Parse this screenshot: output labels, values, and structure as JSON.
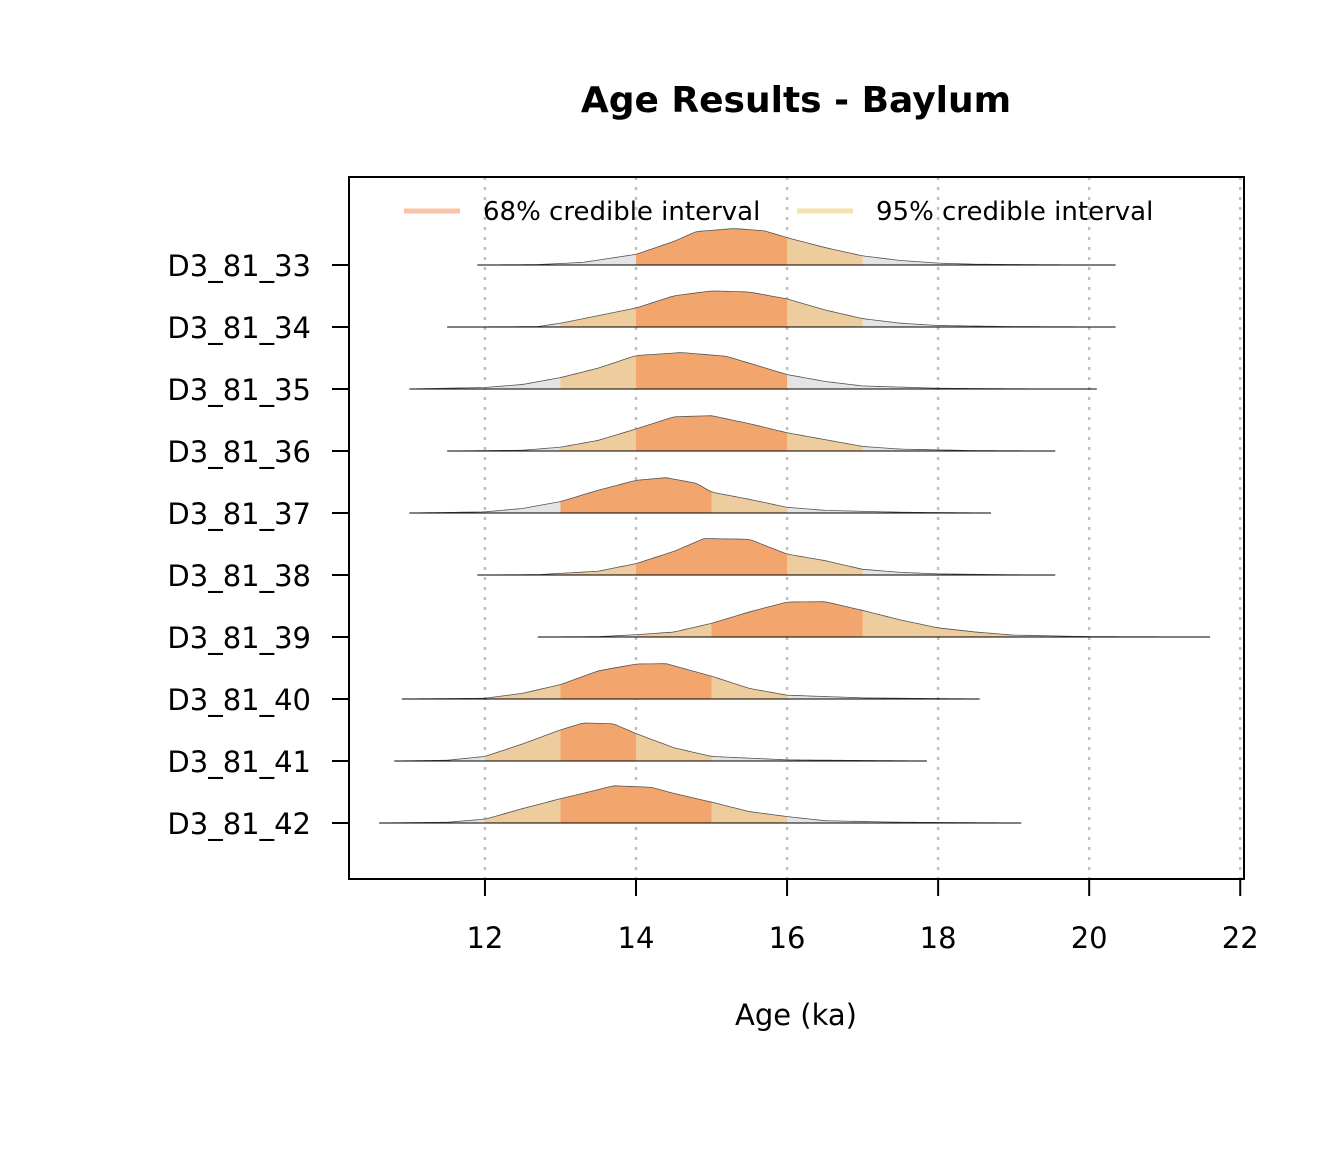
{
  "chart_data": {
    "type": "area",
    "title": "Age Results - Baylum",
    "xlabel": "Age (ka)",
    "ylabel": "",
    "xlim": [
      10.2,
      22.05
    ],
    "x_ticks": [
      12,
      14,
      16,
      18,
      20,
      22
    ],
    "x_tick_labels": [
      "12",
      "14",
      "16",
      "18",
      "20",
      "22"
    ],
    "grid": "vertical dotted at x ticks",
    "legend": {
      "placement": "top",
      "entries": [
        {
          "label": "68% credible interval",
          "color": "#f8c4aa"
        },
        {
          "label": "95% credible interval",
          "color": "#f7e1b0"
        }
      ]
    },
    "colors": {
      "ci68": "#f2a66e",
      "ci95": "#edcc9e",
      "tail": "#e4e4e4",
      "grid": "#bfbfbf"
    },
    "categories": [
      "D3_81_33",
      "D3_81_34",
      "D3_81_35",
      "D3_81_36",
      "D3_81_37",
      "D3_81_38",
      "D3_81_39",
      "D3_81_40",
      "D3_81_41",
      "D3_81_42"
    ],
    "samples": [
      {
        "name": "D3_81_33",
        "range": [
          11.9,
          20.35
        ],
        "ci95": [
          14.0,
          17.0
        ],
        "ci68": [
          14.0,
          16.0
        ],
        "density": [
          [
            11.9,
            0
          ],
          [
            12.7,
            0.01
          ],
          [
            13.3,
            0.07
          ],
          [
            14.0,
            0.28
          ],
          [
            14.5,
            0.62
          ],
          [
            14.8,
            0.88
          ],
          [
            15.3,
            0.96
          ],
          [
            15.7,
            0.9
          ],
          [
            16.0,
            0.72
          ],
          [
            16.5,
            0.46
          ],
          [
            17.0,
            0.24
          ],
          [
            17.5,
            0.12
          ],
          [
            18.0,
            0.05
          ],
          [
            18.5,
            0.02
          ],
          [
            19.5,
            0.005
          ],
          [
            20.35,
            0
          ]
        ]
      },
      {
        "name": "D3_81_34",
        "range": [
          11.5,
          20.35
        ],
        "ci95": [
          13.0,
          17.0
        ],
        "ci68": [
          14.0,
          16.0
        ],
        "density": [
          [
            11.5,
            0
          ],
          [
            12.7,
            0.01
          ],
          [
            13.0,
            0.1
          ],
          [
            13.5,
            0.3
          ],
          [
            14.0,
            0.5
          ],
          [
            14.5,
            0.82
          ],
          [
            15.0,
            0.95
          ],
          [
            15.5,
            0.92
          ],
          [
            16.0,
            0.74
          ],
          [
            16.5,
            0.45
          ],
          [
            17.0,
            0.22
          ],
          [
            17.5,
            0.1
          ],
          [
            18.0,
            0.04
          ],
          [
            19.0,
            0.01
          ],
          [
            20.35,
            0
          ]
        ]
      },
      {
        "name": "D3_81_35",
        "range": [
          11.0,
          20.1
        ],
        "ci95": [
          13.0,
          16.0
        ],
        "ci68": [
          14.0,
          16.0
        ],
        "density": [
          [
            11.0,
            0
          ],
          [
            12.0,
            0.04
          ],
          [
            12.5,
            0.12
          ],
          [
            13.0,
            0.3
          ],
          [
            13.5,
            0.55
          ],
          [
            14.0,
            0.88
          ],
          [
            14.6,
            0.96
          ],
          [
            15.2,
            0.86
          ],
          [
            16.0,
            0.38
          ],
          [
            16.5,
            0.2
          ],
          [
            17.0,
            0.08
          ],
          [
            18.0,
            0.02
          ],
          [
            19.0,
            0.005
          ],
          [
            20.1,
            0
          ]
        ]
      },
      {
        "name": "D3_81_36",
        "range": [
          11.5,
          19.55
        ],
        "ci95": [
          13.0,
          17.0
        ],
        "ci68": [
          14.0,
          16.0
        ],
        "density": [
          [
            11.5,
            0
          ],
          [
            12.5,
            0.02
          ],
          [
            13.0,
            0.1
          ],
          [
            13.5,
            0.28
          ],
          [
            14.0,
            0.58
          ],
          [
            14.5,
            0.9
          ],
          [
            15.0,
            0.93
          ],
          [
            15.5,
            0.72
          ],
          [
            16.0,
            0.48
          ],
          [
            16.5,
            0.3
          ],
          [
            17.0,
            0.12
          ],
          [
            17.5,
            0.05
          ],
          [
            18.5,
            0.01
          ],
          [
            19.55,
            0
          ]
        ]
      },
      {
        "name": "D3_81_37",
        "range": [
          11.0,
          18.7
        ],
        "ci95": [
          13.0,
          16.0
        ],
        "ci68": [
          13.0,
          15.0
        ],
        "density": [
          [
            11.0,
            0
          ],
          [
            12.0,
            0.03
          ],
          [
            12.5,
            0.12
          ],
          [
            13.0,
            0.3
          ],
          [
            13.5,
            0.6
          ],
          [
            14.0,
            0.86
          ],
          [
            14.4,
            0.93
          ],
          [
            14.8,
            0.78
          ],
          [
            15.0,
            0.55
          ],
          [
            15.5,
            0.36
          ],
          [
            16.0,
            0.15
          ],
          [
            16.5,
            0.07
          ],
          [
            17.5,
            0.02
          ],
          [
            18.7,
            0
          ]
        ]
      },
      {
        "name": "D3_81_38",
        "range": [
          11.9,
          19.55
        ],
        "ci95": [
          13.0,
          17.0
        ],
        "ci68": [
          14.0,
          16.0
        ],
        "density": [
          [
            11.9,
            0
          ],
          [
            12.7,
            0.01
          ],
          [
            13.5,
            0.1
          ],
          [
            14.0,
            0.3
          ],
          [
            14.5,
            0.62
          ],
          [
            14.9,
            0.96
          ],
          [
            15.5,
            0.94
          ],
          [
            16.0,
            0.55
          ],
          [
            16.5,
            0.38
          ],
          [
            17.0,
            0.15
          ],
          [
            17.5,
            0.07
          ],
          [
            18.0,
            0.03
          ],
          [
            19.0,
            0.005
          ],
          [
            19.55,
            0
          ]
        ]
      },
      {
        "name": "D3_81_39",
        "range": [
          12.7,
          21.6
        ],
        "ci95": [
          14.0,
          19.0
        ],
        "ci68": [
          15.0,
          17.0
        ],
        "density": [
          [
            12.7,
            0
          ],
          [
            13.5,
            0.01
          ],
          [
            14.0,
            0.06
          ],
          [
            14.5,
            0.13
          ],
          [
            15.0,
            0.36
          ],
          [
            15.5,
            0.66
          ],
          [
            16.0,
            0.92
          ],
          [
            16.5,
            0.93
          ],
          [
            17.0,
            0.7
          ],
          [
            17.5,
            0.45
          ],
          [
            18.0,
            0.24
          ],
          [
            18.5,
            0.13
          ],
          [
            19.0,
            0.05
          ],
          [
            20.0,
            0.01
          ],
          [
            21.6,
            0
          ]
        ]
      },
      {
        "name": "D3_81_40",
        "range": [
          10.9,
          18.55
        ],
        "ci95": [
          12.0,
          16.0
        ],
        "ci68": [
          13.0,
          15.0
        ],
        "density": [
          [
            10.9,
            0
          ],
          [
            12.0,
            0.02
          ],
          [
            12.5,
            0.15
          ],
          [
            13.0,
            0.38
          ],
          [
            13.5,
            0.74
          ],
          [
            14.0,
            0.92
          ],
          [
            14.4,
            0.93
          ],
          [
            15.0,
            0.6
          ],
          [
            15.5,
            0.28
          ],
          [
            16.0,
            0.1
          ],
          [
            17.0,
            0.03
          ],
          [
            18.55,
            0
          ]
        ]
      },
      {
        "name": "D3_81_41",
        "range": [
          10.8,
          17.85
        ],
        "ci95": [
          12.0,
          15.0
        ],
        "ci68": [
          13.0,
          14.0
        ],
        "density": [
          [
            10.8,
            0
          ],
          [
            11.5,
            0.02
          ],
          [
            12.0,
            0.12
          ],
          [
            12.5,
            0.45
          ],
          [
            13.0,
            0.82
          ],
          [
            13.3,
            1.0
          ],
          [
            13.7,
            0.98
          ],
          [
            14.0,
            0.72
          ],
          [
            14.5,
            0.35
          ],
          [
            15.0,
            0.12
          ],
          [
            16.0,
            0.03
          ],
          [
            17.85,
            0
          ]
        ]
      },
      {
        "name": "D3_81_42",
        "range": [
          10.6,
          19.1
        ],
        "ci95": [
          12.0,
          16.0
        ],
        "ci68": [
          13.0,
          15.0
        ],
        "density": [
          [
            10.6,
            0
          ],
          [
            11.5,
            0.02
          ],
          [
            12.0,
            0.1
          ],
          [
            12.5,
            0.38
          ],
          [
            13.0,
            0.64
          ],
          [
            13.3,
            0.78
          ],
          [
            13.7,
            0.98
          ],
          [
            14.2,
            0.94
          ],
          [
            14.5,
            0.78
          ],
          [
            15.0,
            0.55
          ],
          [
            15.5,
            0.3
          ],
          [
            16.0,
            0.17
          ],
          [
            16.5,
            0.06
          ],
          [
            17.5,
            0.02
          ],
          [
            19.1,
            0
          ]
        ]
      }
    ]
  }
}
